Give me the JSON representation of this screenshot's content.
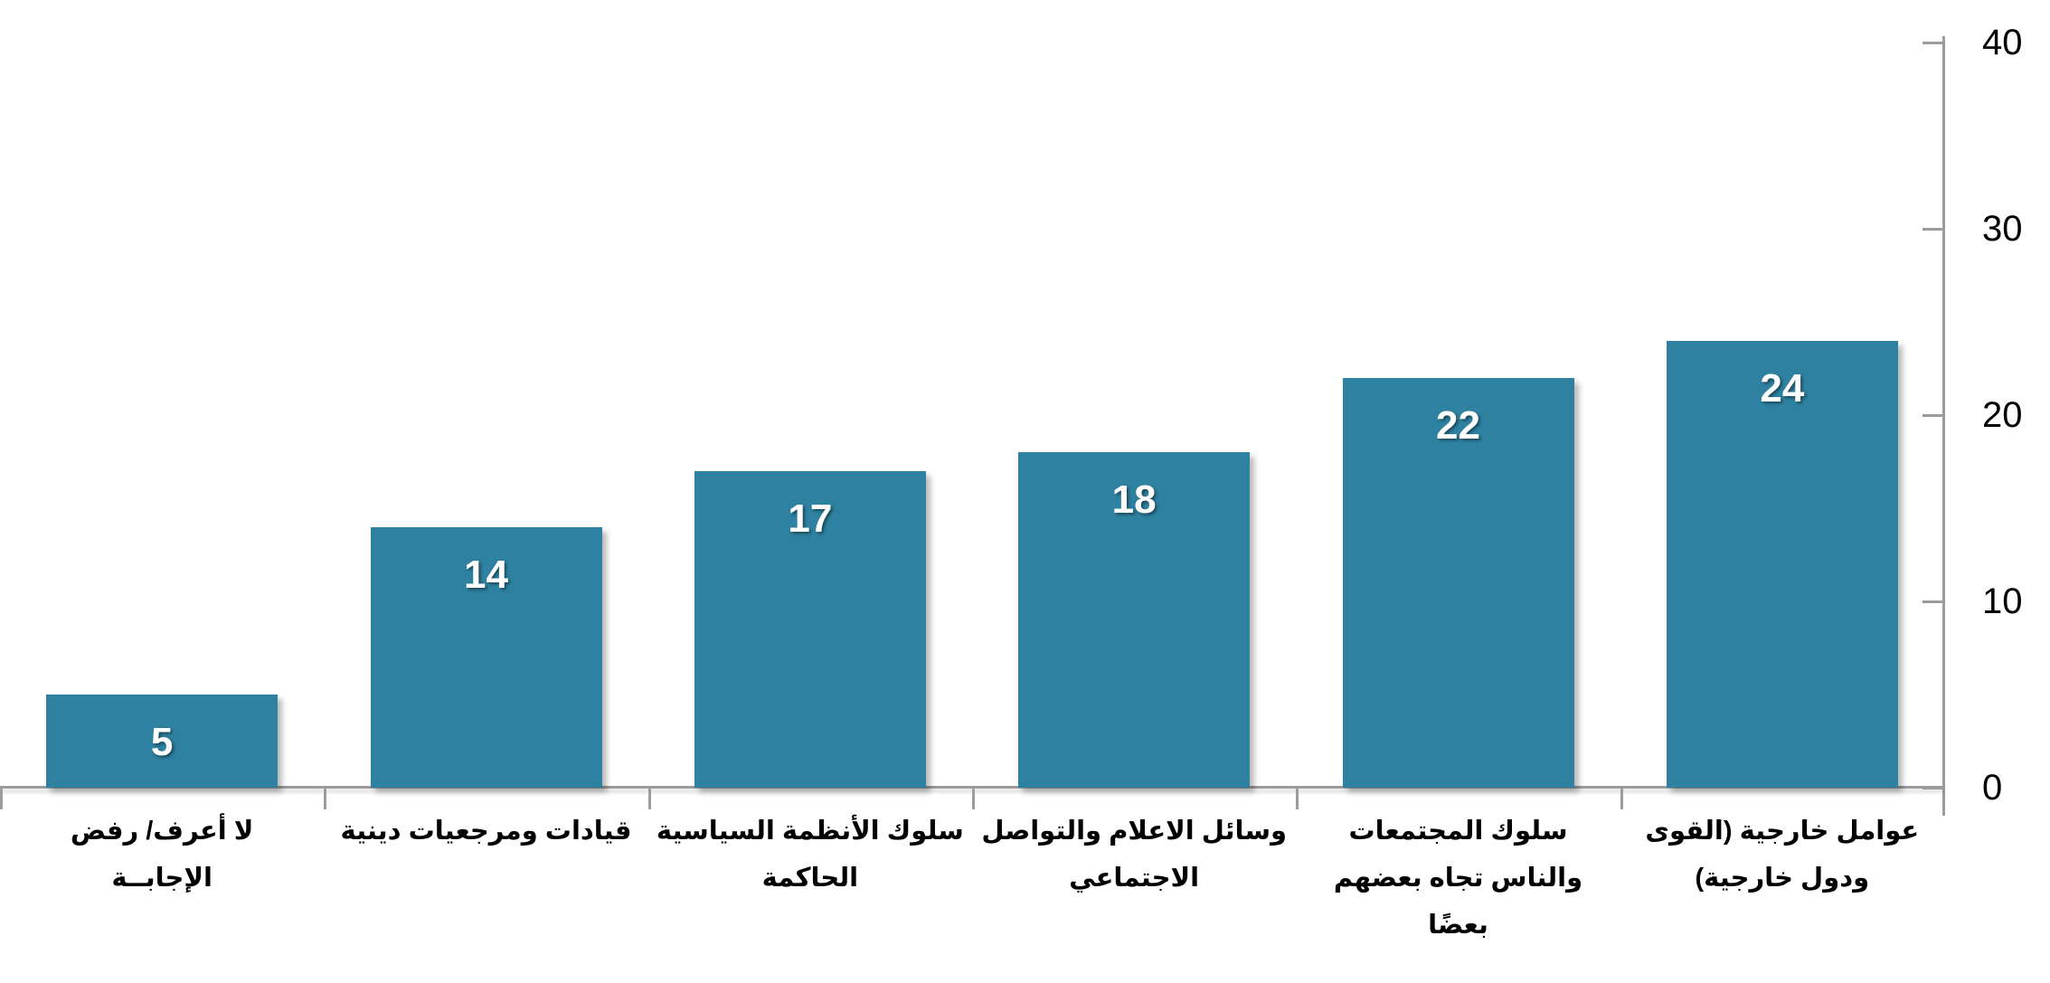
{
  "chart_data": {
    "type": "bar",
    "direction": "rtl",
    "title": "",
    "xlabel": "",
    "ylabel": "",
    "categories": [
      "لا أعرف/ رفض\nالإجابــة",
      "قيادات ومرجعيات دينية",
      "سلوك الأنظمة السياسية\nالحاكمة",
      "وسائل الاعلام والتواصل\nالاجتماعي",
      "سلوك المجتمعات\nوالناس تجاه بعضهم\nبعضًا",
      "عوامل خارجية (القوى\nودول خارجية)"
    ],
    "values": [
      5,
      14,
      17,
      18,
      22,
      24
    ],
    "value_labels": [
      "5",
      "14",
      "17",
      "18",
      "22",
      "24"
    ],
    "ylim": [
      0,
      40
    ],
    "y_ticks": [
      "0",
      "10",
      "20",
      "30",
      "40"
    ],
    "y_tick_values": [
      0,
      10,
      20,
      30,
      40
    ],
    "y_axis_side": "right",
    "grid": false,
    "legend": false,
    "bar_color": "#2E81A0",
    "axis_color": "#9C9C9C",
    "value_label_color": "#FFFFFF",
    "tick_label_color": "#000000"
  }
}
